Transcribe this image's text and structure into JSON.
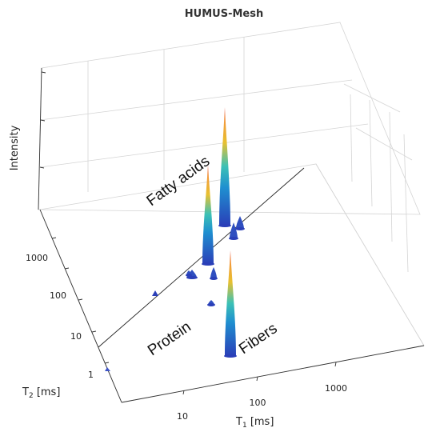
{
  "chart_data": {
    "type": "3d-surface",
    "title": "HUMUS-Mesh",
    "zlabel": "Intensity",
    "x_axis": {
      "label_main": "T",
      "label_sub": "1",
      "label_unit": " [ms]",
      "ticks": [
        "10",
        "100",
        "1000"
      ],
      "scale": "log"
    },
    "y_axis": {
      "label_main": "T",
      "label_sub": "2",
      "label_unit": " [ms]",
      "ticks": [
        "1",
        "10",
        "100",
        "1000"
      ],
      "scale": "log"
    },
    "colormap": [
      "#2a3fb8",
      "#1f8fd0",
      "#3cc1b5",
      "#e8c030",
      "#f29a3a",
      "#e8503a"
    ],
    "annotations": [
      "Fatty acids",
      "Protein",
      "Fibers"
    ],
    "peaks": [
      {
        "region": "Fatty acids",
        "height": 0.62
      },
      {
        "region": "Fatty acids",
        "height": 0.74
      },
      {
        "region": "Fatty acids",
        "height": 0.1
      },
      {
        "region": "Fatty acids",
        "height": 0.08
      },
      {
        "region": "Fatty acids",
        "height": 0.05
      },
      {
        "region": "Fatty acids",
        "height": 0.07
      },
      {
        "region": "Protein",
        "height": 0.03
      },
      {
        "region": "Protein",
        "height": 0.03
      },
      {
        "region": "Fibers",
        "height": 0.66
      }
    ]
  }
}
